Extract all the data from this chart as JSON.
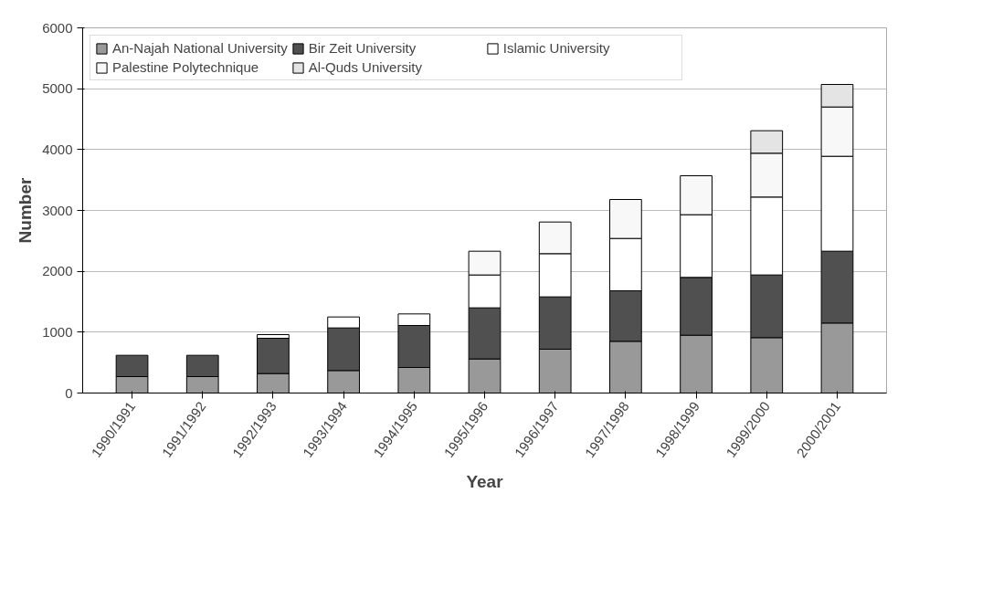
{
  "chart_data": {
    "type": "bar",
    "stacked": true,
    "xlabel": "Year",
    "ylabel": "Number",
    "categories": [
      "1990/1991",
      "1991/1992",
      "1992/1993",
      "1993/1994",
      "1994/1995",
      "1995/1996",
      "1996/1997",
      "1997/1998",
      "1998/1999",
      "1999/2000",
      "2000/2001"
    ],
    "series": [
      {
        "name": "An-Najah National University",
        "color": "#999999",
        "values": [
          270,
          270,
          320,
          370,
          420,
          560,
          720,
          850,
          950,
          910,
          1150
        ]
      },
      {
        "name": "Bir Zeit University",
        "color": "#505050",
        "values": [
          350,
          350,
          580,
          700,
          690,
          840,
          860,
          830,
          950,
          1030,
          1180
        ]
      },
      {
        "name": "Islamic University",
        "color": "#ffffff",
        "values": [
          null,
          null,
          60,
          180,
          190,
          540,
          710,
          860,
          1030,
          1280,
          1560
        ]
      },
      {
        "name": "Palestine Polytechnique",
        "color": "#f8f8f8",
        "values": [
          null,
          null,
          null,
          null,
          null,
          390,
          520,
          640,
          640,
          720,
          810
        ]
      },
      {
        "name": "Al-Quds University",
        "color": "#e4e4e4",
        "values": [
          null,
          null,
          null,
          null,
          null,
          null,
          null,
          null,
          null,
          370,
          370
        ]
      }
    ],
    "ylim": [
      0,
      6000
    ],
    "yticks": [
      0,
      1000,
      2000,
      3000,
      4000,
      5000,
      6000
    ],
    "grid": "y",
    "legend": "top left"
  }
}
